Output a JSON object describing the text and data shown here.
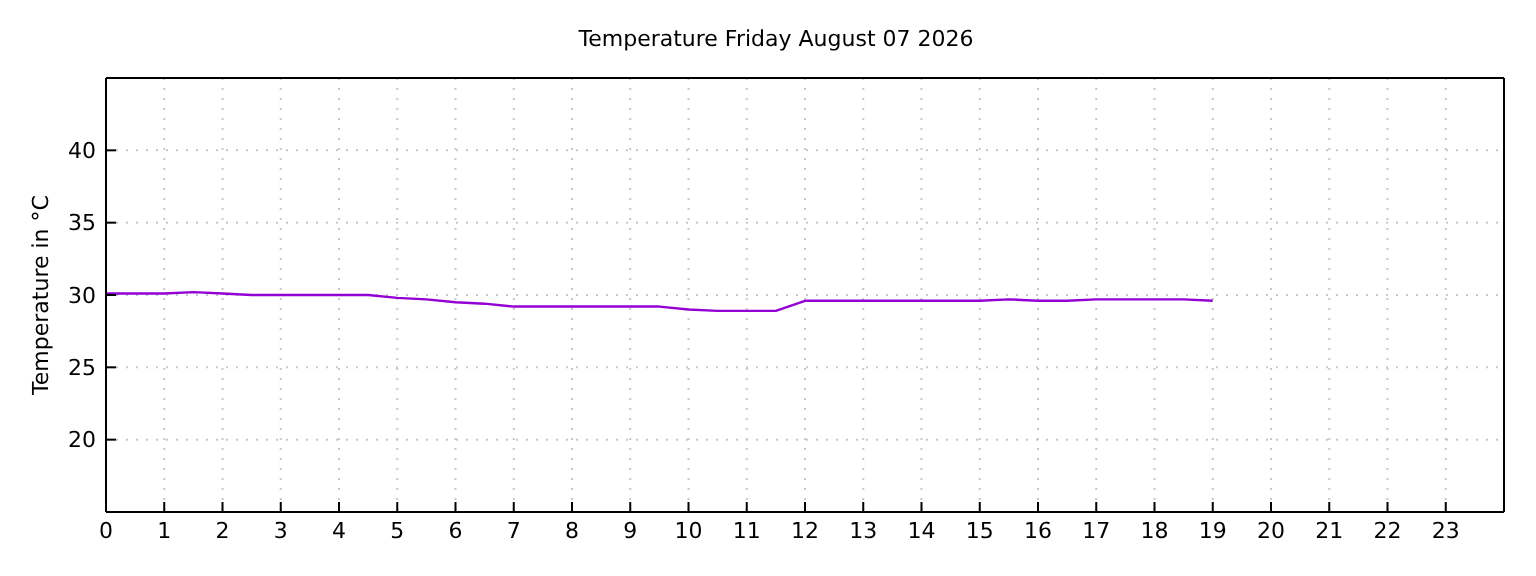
{
  "chart_data": {
    "type": "line",
    "title": "Temperature Friday August 07 2026",
    "ylabel": "Temperature in °C",
    "x": [
      0,
      0.5,
      1,
      1.5,
      2,
      2.5,
      3,
      3.5,
      4,
      4.5,
      5,
      5.5,
      6,
      6.5,
      7,
      7.5,
      8,
      8.5,
      9,
      9.5,
      10,
      10.5,
      11,
      11.5,
      12,
      12.5,
      13,
      13.5,
      14,
      14.5,
      15,
      15.5,
      16,
      16.5,
      17,
      17.5,
      18,
      18.5,
      19
    ],
    "series": [
      {
        "color": "#9400d3",
        "values": [
          30.1,
          30.1,
          30.1,
          30.2,
          30.1,
          30.0,
          30.0,
          30.0,
          30.0,
          30.0,
          29.8,
          29.7,
          29.5,
          29.4,
          29.2,
          29.2,
          29.2,
          29.2,
          29.2,
          29.2,
          29.0,
          28.9,
          28.9,
          28.9,
          29.6,
          29.6,
          29.6,
          29.6,
          29.6,
          29.6,
          29.6,
          29.7,
          29.6,
          29.6,
          29.7,
          29.7,
          29.7,
          29.7,
          29.6
        ]
      }
    ],
    "xlim": [
      0,
      24
    ],
    "xticks": [
      0,
      1,
      2,
      3,
      4,
      5,
      6,
      7,
      8,
      9,
      10,
      11,
      12,
      13,
      14,
      15,
      16,
      17,
      18,
      19,
      20,
      21,
      22,
      23
    ],
    "ylim": [
      15,
      45
    ],
    "yticks": [
      20,
      25,
      30,
      35,
      40
    ],
    "grid": true,
    "legend": false,
    "marker": "none",
    "line_style": "solid"
  }
}
